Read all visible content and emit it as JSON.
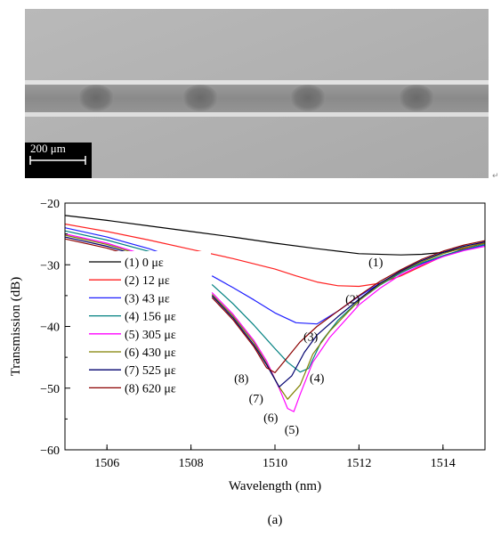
{
  "micrograph": {
    "scale_bar_label": "200 μm",
    "colors": {
      "background": "#b3b3b3",
      "fiber": "#8e8e8e",
      "edge_light": "#e0e0e0",
      "grating_spot": "#6f6f6f"
    },
    "paragraph_mark": "↵"
  },
  "panel_label": "(a)",
  "chart_data": {
    "type": "line",
    "xlabel": "Wavelength (nm)",
    "ylabel": "Transmission (dB)",
    "xlim": [
      1505,
      1515
    ],
    "ylim": [
      -60,
      -20
    ],
    "xticks": [
      1506,
      1508,
      1510,
      1512,
      1514
    ],
    "yticks": [
      -60,
      -50,
      -40,
      -30,
      -20
    ],
    "grid": false,
    "legend_position": "left",
    "series": [
      {
        "name": "(1) 0 με",
        "color": "#000000",
        "label": "(1)",
        "label_x": 1512.4,
        "label_y": -29.5,
        "x": [
          1505,
          1506,
          1507,
          1508,
          1509,
          1510,
          1511,
          1512,
          1513,
          1513.5,
          1514,
          1514.5,
          1515
        ],
        "y": [
          -22,
          -22.8,
          -23.7,
          -24.6,
          -25.5,
          -26.5,
          -27.4,
          -28.2,
          -28.4,
          -28.3,
          -28,
          -27.3,
          -26.5
        ]
      },
      {
        "name": "(2) 12 με",
        "color": "#ff2020",
        "label": "(2)",
        "label_x": 1511.85,
        "label_y": -35.5,
        "x": [
          1505,
          1506,
          1507,
          1508,
          1509,
          1510,
          1510.5,
          1511,
          1511.5,
          1512,
          1512.5,
          1513,
          1513.5,
          1514,
          1514.5,
          1515
        ],
        "y": [
          -23.4,
          -24.6,
          -26,
          -27.5,
          -29,
          -30.7,
          -31.8,
          -32.8,
          -33.4,
          -33.5,
          -33,
          -31.8,
          -30.2,
          -28.6,
          -27.4,
          -26.3
        ]
      },
      {
        "name": "(3) 43 με",
        "color": "#1f1fff",
        "label": "(3)",
        "label_x": 1510.85,
        "label_y": -41.6,
        "x": [
          1505,
          1506,
          1507,
          1507.6,
          1508.5,
          1509,
          1509.5,
          1510,
          1510.5,
          1511,
          1511.5,
          1512,
          1512.5,
          1513,
          1513.5,
          1514,
          1514.5,
          1515
        ],
        "y": [
          -24,
          -25.5,
          -27.4,
          -28.8,
          -31.8,
          -33.7,
          -35.7,
          -37.8,
          -39.4,
          -39.6,
          -37.5,
          -35.1,
          -33,
          -31.2,
          -29.8,
          -28.6,
          -27.6,
          -26.8
        ],
        "gap_after_x": 1507.6
      },
      {
        "name": "(4) 156 με",
        "color": "#008080",
        "label": "(4)",
        "label_x": 1511.0,
        "label_y": -48.3,
        "x": [
          1505,
          1506,
          1507.2,
          1508.5,
          1509,
          1509.5,
          1510,
          1510.3,
          1510.6,
          1510.8,
          1511.1,
          1511.5,
          1512,
          1512.5,
          1513,
          1513.5,
          1514,
          1514.5,
          1515
        ],
        "y": [
          -24.5,
          -26,
          -28.2,
          -33.2,
          -36.3,
          -39.8,
          -43.6,
          -45.8,
          -47.4,
          -46.8,
          -42.5,
          -39,
          -35.8,
          -33.3,
          -31.3,
          -29.7,
          -28.5,
          -27.5,
          -26.7
        ],
        "gap_after_x": 1507.2
      },
      {
        "name": "(5) 305 με",
        "color": "#ff00ff",
        "label": "(5)",
        "label_x": 1510.4,
        "label_y": -56.7,
        "x": [
          1505,
          1506,
          1507,
          1508.5,
          1509,
          1509.5,
          1509.8,
          1510.1,
          1510.3,
          1510.45,
          1510.6,
          1510.9,
          1511.3,
          1512,
          1512.5,
          1513,
          1513.5,
          1514,
          1514.5,
          1515
        ],
        "y": [
          -25,
          -26.5,
          -28.6,
          -34.5,
          -38,
          -42.3,
          -45.6,
          -50,
          -53.3,
          -53.8,
          -51,
          -45.8,
          -41.8,
          -36.5,
          -33.8,
          -31.6,
          -30,
          -28.7,
          -27.7,
          -27
        ],
        "gap_after_x": 1507
      },
      {
        "name": "(6) 430 με",
        "color": "#808000",
        "label": "(6)",
        "label_x": 1509.9,
        "label_y": -54.7,
        "x": [
          1505,
          1506,
          1507,
          1508.5,
          1509,
          1509.5,
          1509.8,
          1510.1,
          1510.3,
          1510.6,
          1510.9,
          1511.3,
          1512,
          1512.5,
          1513,
          1513.5,
          1514,
          1514.5,
          1515
        ],
        "y": [
          -25.2,
          -26.7,
          -28.8,
          -34.8,
          -38.3,
          -42.6,
          -46,
          -49.8,
          -51.8,
          -49.5,
          -44.5,
          -40.8,
          -35.8,
          -33.2,
          -31.1,
          -29.5,
          -28.2,
          -27.2,
          -26.5
        ],
        "gap_after_x": 1507
      },
      {
        "name": "(7) 525 με",
        "color": "#00006e",
        "label": "(7)",
        "label_x": 1509.55,
        "label_y": -51.6,
        "x": [
          1505,
          1506,
          1507,
          1508.5,
          1509,
          1509.5,
          1509.8,
          1510.1,
          1510.4,
          1510.7,
          1511,
          1511.5,
          1512,
          1512.5,
          1513,
          1513.5,
          1514,
          1514.5,
          1515
        ],
        "y": [
          -25.5,
          -27,
          -29,
          -35,
          -38.6,
          -43,
          -46.2,
          -49.8,
          -48,
          -44.2,
          -41.4,
          -38.4,
          -35.6,
          -33,
          -31,
          -29.3,
          -28,
          -27,
          -26.3
        ],
        "gap_after_x": 1507
      },
      {
        "name": "(8) 620 με",
        "color": "#8b0000",
        "label": "(8)",
        "label_x": 1509.2,
        "label_y": -48.4,
        "x": [
          1505,
          1506,
          1507,
          1508.5,
          1509,
          1509.5,
          1509.8,
          1510,
          1510.3,
          1510.6,
          1511,
          1511.5,
          1512,
          1512.5,
          1513,
          1513.5,
          1514,
          1514.5,
          1515
        ],
        "y": [
          -25.8,
          -27.3,
          -29.3,
          -35.3,
          -38.9,
          -43.3,
          -46.7,
          -47.5,
          -45,
          -42.5,
          -40,
          -37.5,
          -35,
          -32.7,
          -30.8,
          -29.1,
          -27.8,
          -26.8,
          -26.1
        ],
        "gap_after_x": 1507
      }
    ]
  }
}
